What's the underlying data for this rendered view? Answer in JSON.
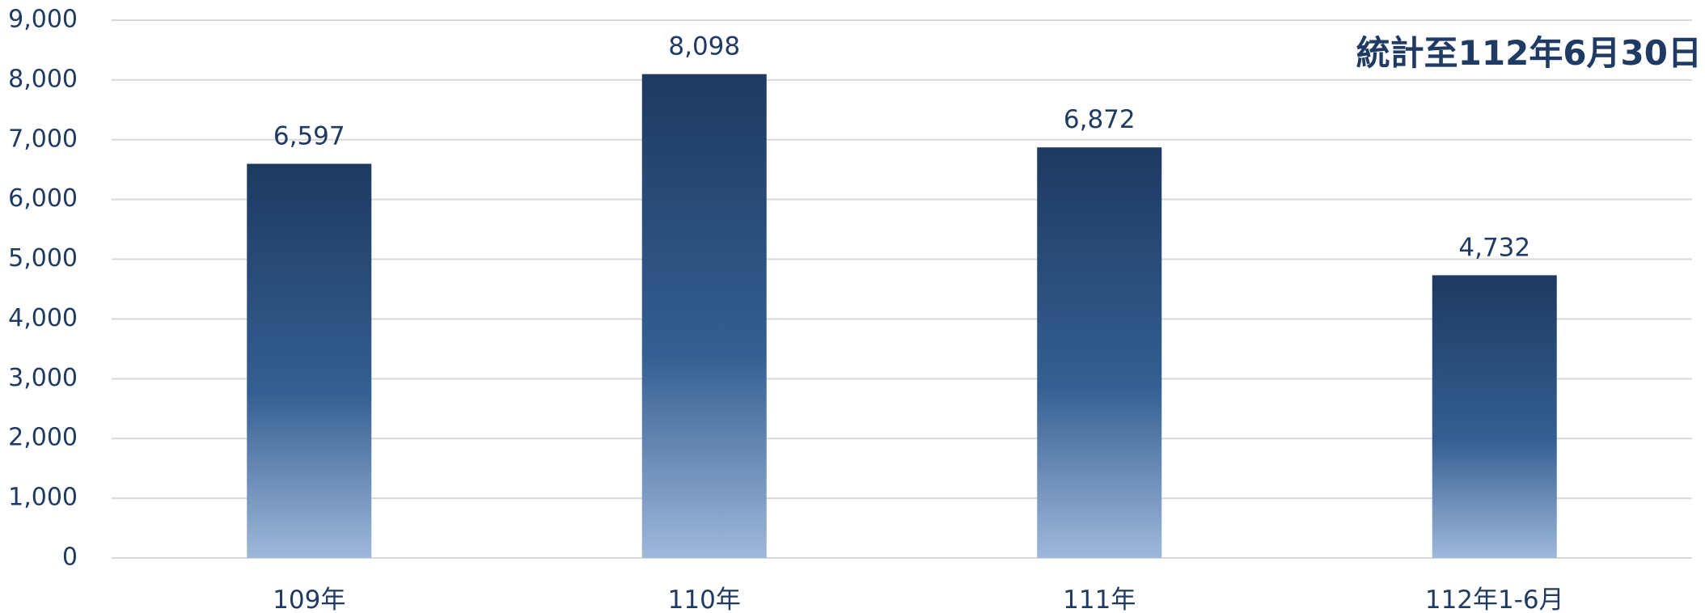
{
  "chart_data": {
    "type": "bar",
    "title": "",
    "annotation": "統計至112年6月30日",
    "xlabel": "",
    "ylabel": "",
    "categories": [
      "109年",
      "110年",
      "111年",
      "112年1-6月"
    ],
    "values": [
      6597,
      8098,
      6872,
      4732
    ],
    "value_labels": [
      "6,597",
      "8,098",
      "6,872",
      "4,732"
    ],
    "ylim": [
      0,
      9000
    ],
    "yticks": [
      0,
      1000,
      2000,
      3000,
      4000,
      5000,
      6000,
      7000,
      8000,
      9000
    ],
    "ytick_labels": [
      "0",
      "1,000",
      "2,000",
      "3,000",
      "4,000",
      "5,000",
      "6,000",
      "7,000",
      "8,000",
      "9,000"
    ],
    "grid": true,
    "legend": "none",
    "colors": {
      "bar_top": "#1d3a61",
      "bar_mid": "#345f92",
      "bar_bottom": "#9fb8da",
      "text": "#1f3b63",
      "grid": "#d9d9d9"
    }
  }
}
